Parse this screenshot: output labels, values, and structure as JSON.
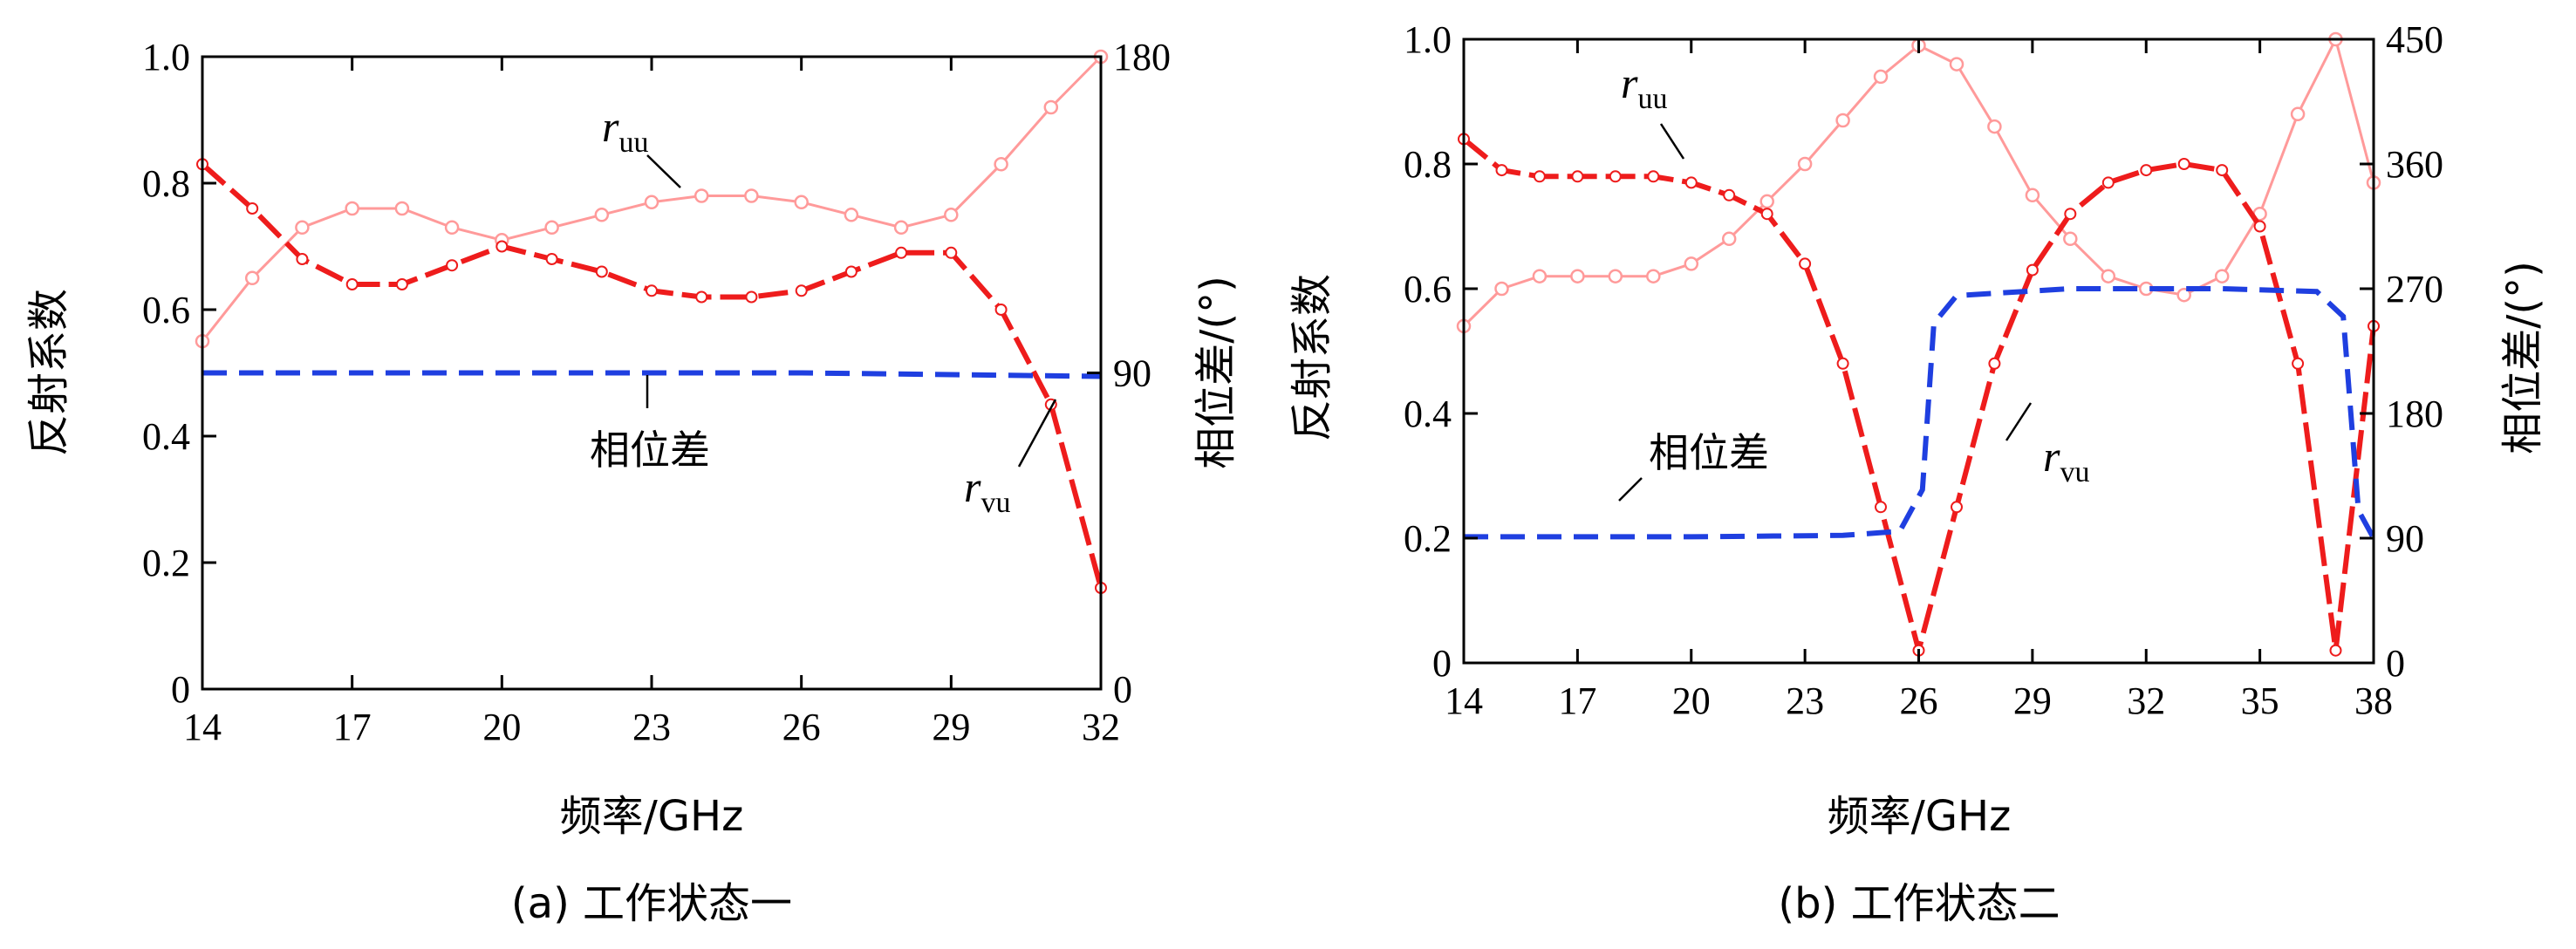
{
  "chart_data": [
    {
      "type": "line",
      "caption": "(a) 工作状态一",
      "xlabel": "频率/GHz",
      "ylabel": "反射系数",
      "y2label": "相位差/(°)",
      "xlim": [
        14,
        32
      ],
      "ylim": [
        0,
        1.0
      ],
      "y2lim": [
        0,
        180
      ],
      "xticks": [
        "14",
        "17",
        "20",
        "23",
        "26",
        "29",
        "32"
      ],
      "yticks": [
        "0",
        "0.2",
        "0.4",
        "0.6",
        "0.8",
        "1.0"
      ],
      "y2ticks": [
        "0",
        "90",
        "180"
      ],
      "annotations": [
        {
          "label": "r",
          "sub": "uu"
        },
        {
          "label": "r",
          "sub": "vu"
        },
        {
          "label": "相位差"
        }
      ],
      "colors": {
        "ruu": "#ff9a9a",
        "rvu": "#ee1c1c",
        "phase": "#1f3fe0"
      },
      "series": [
        {
          "key": "ruu",
          "axis": "left",
          "x": [
            14,
            15,
            16,
            17,
            18,
            19,
            20,
            21,
            22,
            23,
            24,
            25,
            26,
            27,
            28,
            29,
            30,
            31,
            32
          ],
          "y": [
            0.55,
            0.65,
            0.73,
            0.76,
            0.76,
            0.73,
            0.71,
            0.73,
            0.75,
            0.77,
            0.78,
            0.78,
            0.77,
            0.75,
            0.73,
            0.75,
            0.83,
            0.92,
            1.0
          ]
        },
        {
          "key": "rvu",
          "axis": "left",
          "x": [
            14,
            15,
            16,
            17,
            18,
            19,
            20,
            21,
            22,
            23,
            24,
            25,
            26,
            27,
            28,
            29,
            30,
            31,
            32
          ],
          "y": [
            0.83,
            0.76,
            0.68,
            0.64,
            0.64,
            0.67,
            0.7,
            0.68,
            0.66,
            0.63,
            0.62,
            0.62,
            0.63,
            0.66,
            0.69,
            0.69,
            0.6,
            0.45,
            0.16
          ]
        },
        {
          "key": "phase",
          "axis": "right",
          "x": [
            14,
            20,
            26,
            32
          ],
          "y": [
            90,
            90,
            90,
            89
          ]
        }
      ]
    },
    {
      "type": "line",
      "caption": "(b) 工作状态二",
      "xlabel": "频率/GHz",
      "ylabel": "反射系数",
      "y2label": "相位差/(°)",
      "xlim": [
        14,
        38
      ],
      "ylim": [
        0,
        1.0
      ],
      "y2lim": [
        0,
        450
      ],
      "xticks": [
        "14",
        "17",
        "20",
        "23",
        "26",
        "29",
        "32",
        "35",
        "38"
      ],
      "yticks": [
        "0",
        "0.2",
        "0.4",
        "0.6",
        "0.8",
        "1.0"
      ],
      "y2ticks": [
        "0",
        "90",
        "180",
        "270",
        "360",
        "450"
      ],
      "annotations": [
        {
          "label": "r",
          "sub": "uu"
        },
        {
          "label": "r",
          "sub": "vu"
        },
        {
          "label": "相位差"
        }
      ],
      "colors": {
        "ruu": "#ff9a9a",
        "rvu": "#ee1c1c",
        "phase": "#1f3fe0"
      },
      "series": [
        {
          "key": "ruu",
          "axis": "left",
          "x": [
            14,
            15,
            16,
            17,
            18,
            19,
            20,
            21,
            22,
            23,
            24,
            25,
            26,
            27,
            28,
            29,
            30,
            31,
            32,
            33,
            34,
            35,
            36,
            37,
            38
          ],
          "y": [
            0.54,
            0.6,
            0.62,
            0.62,
            0.62,
            0.62,
            0.64,
            0.68,
            0.74,
            0.8,
            0.87,
            0.94,
            0.99,
            0.96,
            0.86,
            0.75,
            0.68,
            0.62,
            0.6,
            0.59,
            0.62,
            0.72,
            0.88,
            1.0,
            0.77
          ]
        },
        {
          "key": "rvu",
          "axis": "left",
          "x": [
            14,
            15,
            16,
            17,
            18,
            19,
            20,
            21,
            22,
            23,
            24,
            25,
            26,
            27,
            28,
            29,
            30,
            31,
            32,
            33,
            34,
            35,
            36,
            37,
            38
          ],
          "y": [
            0.84,
            0.79,
            0.78,
            0.78,
            0.78,
            0.78,
            0.77,
            0.75,
            0.72,
            0.64,
            0.48,
            0.25,
            0.02,
            0.25,
            0.48,
            0.63,
            0.72,
            0.77,
            0.79,
            0.8,
            0.79,
            0.7,
            0.48,
            0.02,
            0.54
          ]
        },
        {
          "key": "phase",
          "axis": "right",
          "x": [
            14,
            20,
            24,
            25.5,
            26.1,
            26.4,
            27,
            30,
            34,
            36.5,
            37.2,
            37.6,
            38
          ],
          "y": [
            91,
            91,
            92,
            95,
            125,
            245,
            265,
            270,
            270,
            268,
            250,
            110,
            90
          ]
        }
      ]
    }
  ]
}
